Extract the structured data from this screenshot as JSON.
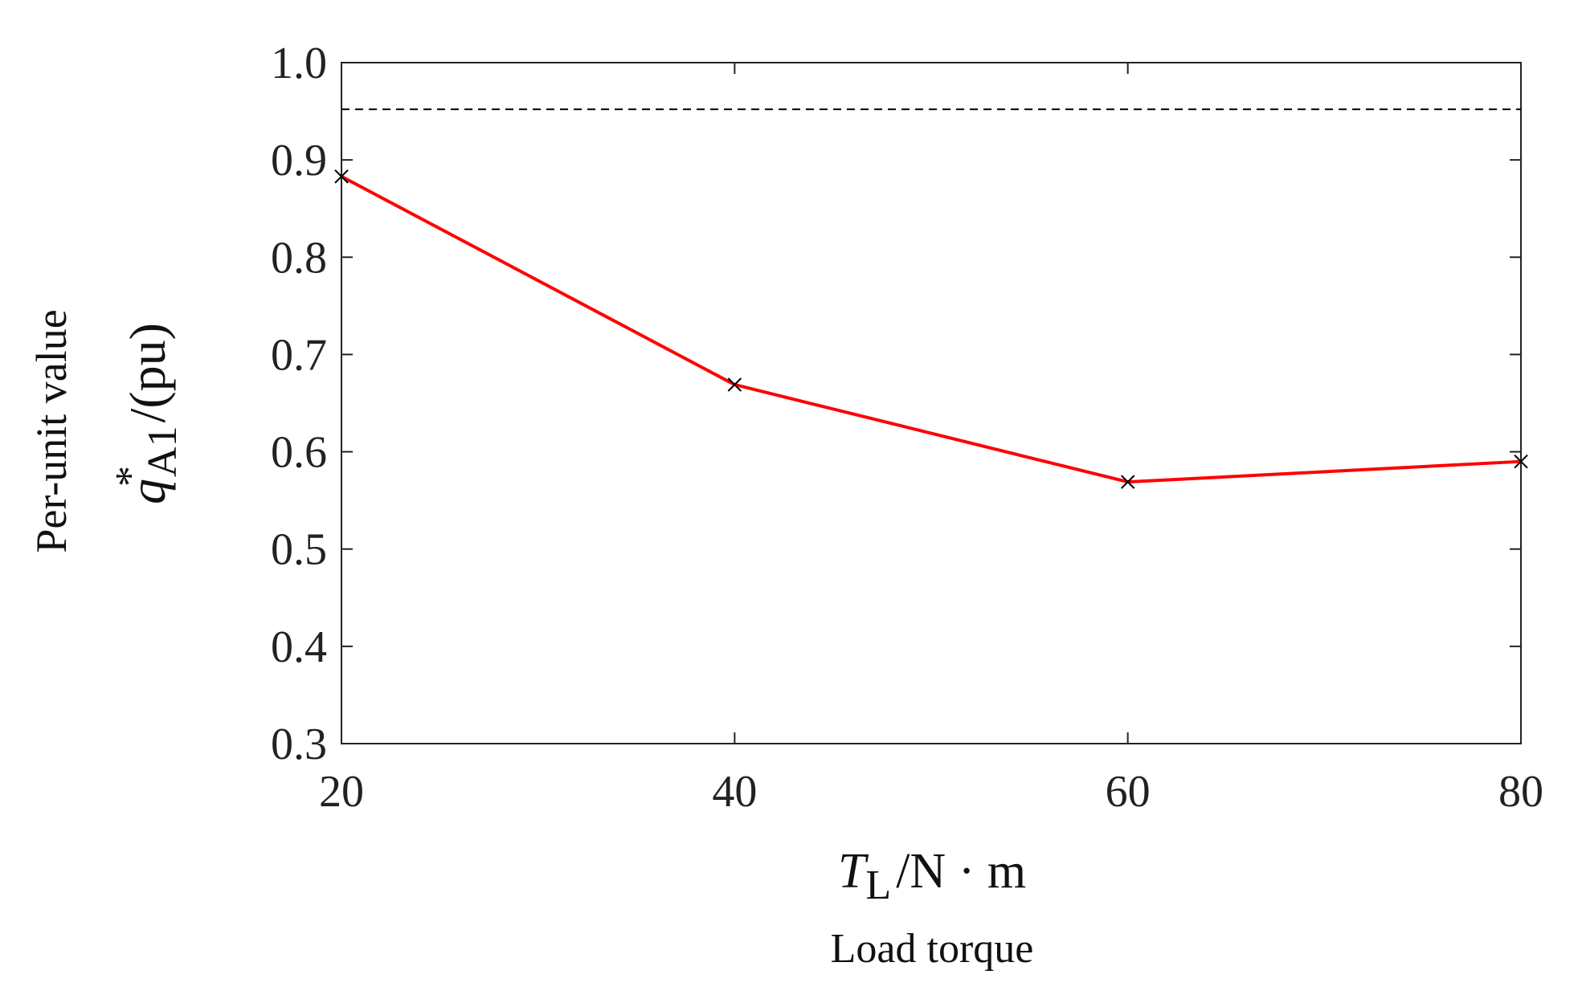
{
  "chart_data": {
    "type": "line",
    "xlabel": {
      "symbol": "T",
      "subscript": "L",
      "unit": "/N · m",
      "description": "Load torque"
    },
    "ylabel": {
      "description": "Per-unit value",
      "symbol": "q",
      "superscript": "*",
      "subscript": "A1",
      "unit": "/(pu)"
    },
    "xlim": [
      20,
      80
    ],
    "ylim": [
      0.3,
      1.0
    ],
    "xticks": [
      "20",
      "40",
      "60",
      "80"
    ],
    "yticks": [
      "0.3",
      "0.4",
      "0.5",
      "0.6",
      "0.7",
      "0.8",
      "0.9",
      "1.0"
    ],
    "x": [
      20,
      40,
      60,
      80
    ],
    "series": [
      {
        "values": [
          0.883,
          0.669,
          0.569,
          0.59
        ],
        "color": "#ff0000",
        "marker": "x",
        "marker_color": "#000000"
      }
    ],
    "reference_line": {
      "y": 0.952,
      "style": "dashed",
      "color": "#000000"
    },
    "grid": false,
    "box": true
  }
}
